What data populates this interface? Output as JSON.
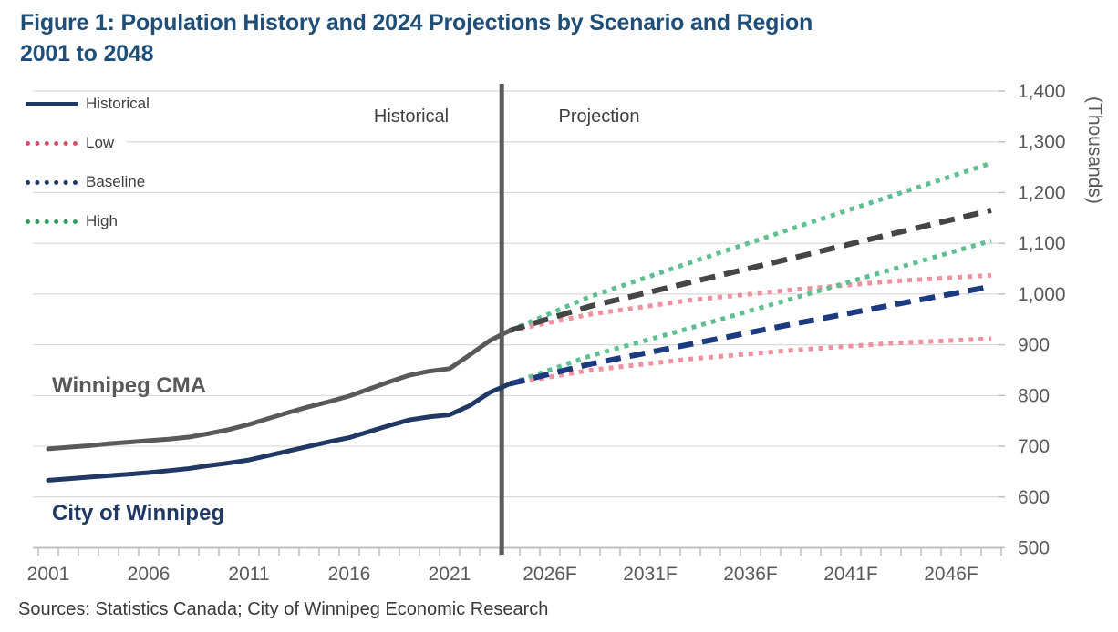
{
  "title": {
    "line1": "Figure 1: Population History and 2024 Projections by Scenario and Region",
    "line2": "2001 to 2048"
  },
  "source": "Sources: Statistics Canada; City of Winnipeg Economic Research",
  "legend": {
    "items": [
      {
        "label": "Historical",
        "style": "solid",
        "color": "#1f3864"
      },
      {
        "label": "Low",
        "style": "dotted",
        "color": "#d5506a"
      },
      {
        "label": "Baseline",
        "style": "dotted",
        "color": "#1f3864"
      },
      {
        "label": "High",
        "style": "dotted",
        "color": "#2ca05f"
      }
    ]
  },
  "annotations": {
    "period_left": "Historical",
    "period_right": "Projection",
    "region_upper": "Winnipeg CMA",
    "region_lower": "City of Winnipeg"
  },
  "colors": {
    "title_blue": "#1f4e79",
    "historical_cma": "#595959",
    "historical_city": "#1f3864",
    "baseline_cma_dash": "#454545",
    "baseline_city_dash": "#1b3a80",
    "high_green": "#5ec091",
    "low_pink": "#f0919f",
    "gridline": "#d9d9d9",
    "axis": "#bfbfbf",
    "tick_text": "#595959",
    "divider": "#595959"
  },
  "chart_data": {
    "type": "line",
    "title": "Figure 1: Population History and 2024 Projections by Scenario and Region, 2001 to 2048",
    "ylabel": "(Thousands)",
    "units": "thousands of people",
    "ylim": [
      500,
      1400
    ],
    "xlim": [
      2001,
      2048
    ],
    "grid": "horizontal",
    "legend_position": "top-left",
    "divider_year": 2023.6,
    "y_ticks": [
      {
        "value": 500,
        "label": "500"
      },
      {
        "value": 600,
        "label": "600"
      },
      {
        "value": 700,
        "label": "700"
      },
      {
        "value": 800,
        "label": "800"
      },
      {
        "value": 900,
        "label": "900"
      },
      {
        "value": 1000,
        "label": "1,000"
      },
      {
        "value": 1100,
        "label": "1,100"
      },
      {
        "value": 1200,
        "label": "1,200"
      },
      {
        "value": 1300,
        "label": "1,300"
      },
      {
        "value": 1400,
        "label": "1,400"
      }
    ],
    "x_ticks": [
      {
        "year": 2001,
        "label": "2001"
      },
      {
        "year": 2006,
        "label": "2006"
      },
      {
        "year": 2011,
        "label": "2011"
      },
      {
        "year": 2016,
        "label": "2016"
      },
      {
        "year": 2021,
        "label": "2021"
      },
      {
        "year": 2026,
        "label": "2026F"
      },
      {
        "year": 2031,
        "label": "2031F"
      },
      {
        "year": 2036,
        "label": "2036F"
      },
      {
        "year": 2041,
        "label": "2041F"
      },
      {
        "year": 2046,
        "label": "2046F"
      }
    ],
    "series": [
      {
        "id": "cma-high",
        "region": "Winnipeg CMA",
        "scenario": "High",
        "style": "dotted",
        "color": "#5ec091",
        "width": 5,
        "years": [
          2024,
          2028,
          2033,
          2038,
          2043,
          2048
        ],
        "values": [
          928,
          995,
          1062,
          1128,
          1193,
          1258
        ]
      },
      {
        "id": "cma-low",
        "region": "Winnipeg CMA",
        "scenario": "Low",
        "style": "dotted",
        "color": "#f0919f",
        "width": 5,
        "years": [
          2024,
          2028,
          2033,
          2038,
          2043,
          2048
        ],
        "values": [
          928,
          960,
          988,
          1008,
          1025,
          1037
        ]
      },
      {
        "id": "city-high",
        "region": "City of Winnipeg",
        "scenario": "High",
        "style": "dotted",
        "color": "#5ec091",
        "width": 5,
        "years": [
          2024,
          2028,
          2033,
          2038,
          2043,
          2048
        ],
        "values": [
          823,
          878,
          933,
          990,
          1048,
          1105
        ]
      },
      {
        "id": "city-low",
        "region": "City of Winnipeg",
        "scenario": "Low",
        "style": "dotted",
        "color": "#f0919f",
        "width": 5,
        "years": [
          2024,
          2028,
          2033,
          2038,
          2043,
          2048
        ],
        "values": [
          823,
          850,
          872,
          889,
          903,
          912
        ]
      },
      {
        "id": "cma-baseline",
        "region": "Winnipeg CMA",
        "scenario": "Baseline",
        "style": "dashed",
        "color": "#454545",
        "width": 6,
        "years": [
          2024,
          2028,
          2033,
          2038,
          2043,
          2048
        ],
        "values": [
          928,
          976,
          1023,
          1070,
          1118,
          1165
        ]
      },
      {
        "id": "city-baseline",
        "region": "City of Winnipeg",
        "scenario": "Baseline",
        "style": "dashed",
        "color": "#1b3a80",
        "width": 6,
        "years": [
          2024,
          2028,
          2033,
          2038,
          2043,
          2048
        ],
        "values": [
          823,
          862,
          901,
          940,
          978,
          1015
        ]
      },
      {
        "id": "cma-historical",
        "region": "Winnipeg CMA",
        "scenario": "Historical",
        "style": "solid",
        "color": "#595959",
        "width": 5,
        "years": [
          2001,
          2002,
          2003,
          2004,
          2005,
          2006,
          2007,
          2008,
          2009,
          2010,
          2011,
          2012,
          2013,
          2014,
          2015,
          2016,
          2017,
          2018,
          2019,
          2020,
          2021,
          2022,
          2023,
          2024
        ],
        "values": [
          695,
          698,
          701,
          705,
          708,
          711,
          714,
          718,
          725,
          733,
          743,
          755,
          767,
          778,
          788,
          799,
          813,
          827,
          840,
          848,
          853,
          880,
          908,
          928
        ]
      },
      {
        "id": "city-historical",
        "region": "City of Winnipeg",
        "scenario": "Historical",
        "style": "solid",
        "color": "#1f3864",
        "width": 5,
        "years": [
          2001,
          2002,
          2003,
          2004,
          2005,
          2006,
          2007,
          2008,
          2009,
          2010,
          2011,
          2012,
          2013,
          2014,
          2015,
          2016,
          2017,
          2018,
          2019,
          2020,
          2021,
          2022,
          2023,
          2024
        ],
        "values": [
          633,
          636,
          639,
          642,
          645,
          648,
          652,
          656,
          662,
          667,
          673,
          682,
          691,
          700,
          709,
          717,
          729,
          741,
          752,
          758,
          762,
          780,
          806,
          823
        ]
      }
    ]
  }
}
